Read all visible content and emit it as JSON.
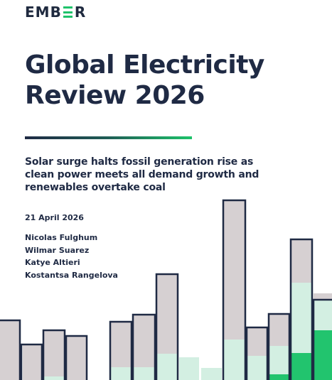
{
  "logo": {
    "text_before": "EMB",
    "text_after": "R"
  },
  "title": {
    "line1": "Global Electricity",
    "line2": "Review 2026"
  },
  "subtitle": {
    "line1": "Solar surge halts fossil generation rise as",
    "line2": "clean power meets all demand growth and",
    "line3": "renewables overtake coal"
  },
  "date": "21 April 2026",
  "authors": [
    "Nicolas Fulghum",
    "Wilmar Suarez",
    "Katye Altieri",
    "Kostantsa Rangelova"
  ],
  "colors": {
    "navy": "#1f2a44",
    "fossil_grey": "#d6d0d2",
    "clean_light": "#d3efe2",
    "solar_green": "#22c46e",
    "accent_green": "#1ec26a"
  }
}
